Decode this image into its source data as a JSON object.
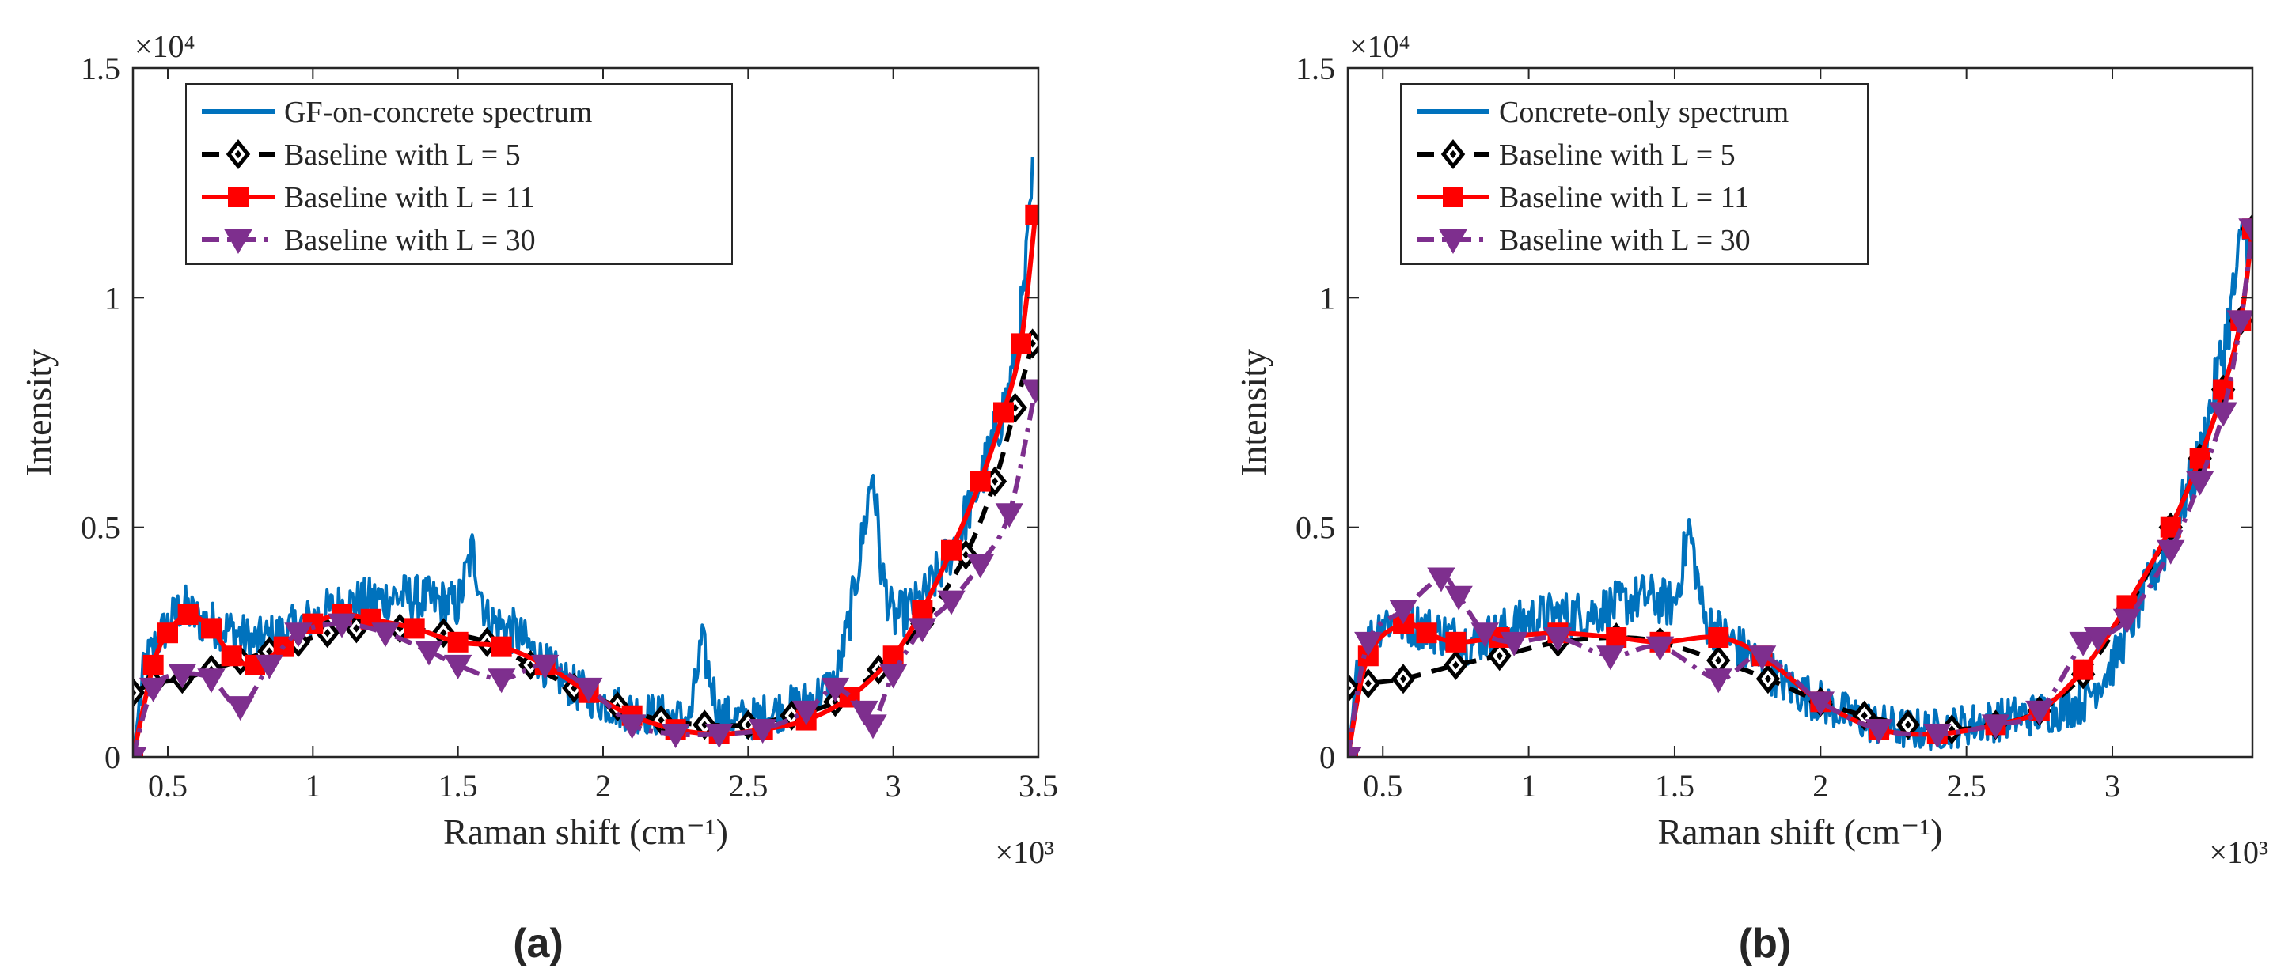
{
  "figure": {
    "panels": [
      "a",
      "b"
    ]
  },
  "chart_data": [
    {
      "type": "line",
      "panel_caption": "(a)",
      "title": "",
      "xlabel": "Raman shift (cm⁻¹)",
      "ylabel": "Intensity",
      "x_exponent": "×10³",
      "y_exponent": "×10⁴",
      "xlim": [
        0.38,
        3.5
      ],
      "ylim": [
        0,
        1.5
      ],
      "xticks": [
        0.5,
        1,
        1.5,
        2,
        2.5,
        3,
        3.5
      ],
      "xtick_labels": [
        "0.5",
        "1",
        "1.5",
        "2",
        "2.5",
        "3",
        "3.5"
      ],
      "yticks": [
        0,
        0.5,
        1,
        1.5
      ],
      "ytick_labels": [
        "0",
        "0.5",
        "1",
        "1.5"
      ],
      "legend_position": "top-left",
      "series": [
        {
          "name": "GF-on-concrete spectrum",
          "color": "#0072BD",
          "style": "solid",
          "marker": "none",
          "noisy": true,
          "x": [
            0.38,
            0.42,
            0.48,
            0.55,
            0.6,
            0.7,
            0.8,
            0.9,
            1.0,
            1.1,
            1.2,
            1.3,
            1.4,
            1.5,
            1.55,
            1.6,
            1.7,
            1.8,
            1.9,
            2.0,
            2.1,
            2.2,
            2.3,
            2.34,
            2.4,
            2.5,
            2.6,
            2.7,
            2.8,
            2.85,
            2.9,
            2.93,
            2.96,
            3.0,
            3.1,
            3.2,
            3.3,
            3.4,
            3.45,
            3.48
          ],
          "y": [
            0.0,
            0.2,
            0.27,
            0.33,
            0.3,
            0.28,
            0.25,
            0.27,
            0.3,
            0.33,
            0.34,
            0.35,
            0.34,
            0.33,
            0.45,
            0.3,
            0.27,
            0.2,
            0.15,
            0.12,
            0.1,
            0.09,
            0.08,
            0.25,
            0.09,
            0.08,
            0.1,
            0.12,
            0.16,
            0.3,
            0.5,
            0.63,
            0.4,
            0.3,
            0.34,
            0.45,
            0.6,
            0.8,
            1.0,
            1.25
          ]
        },
        {
          "name": "Baseline with L = 5",
          "color": "#000000",
          "style": "dashed",
          "marker": "diamond",
          "x": [
            0.38,
            0.45,
            0.55,
            0.65,
            0.75,
            0.85,
            0.95,
            1.05,
            1.15,
            1.3,
            1.45,
            1.6,
            1.75,
            1.9,
            2.05,
            2.2,
            2.35,
            2.5,
            2.65,
            2.8,
            2.95,
            3.1,
            3.25,
            3.35,
            3.42,
            3.48
          ],
          "y": [
            0.14,
            0.16,
            0.17,
            0.19,
            0.21,
            0.23,
            0.25,
            0.27,
            0.28,
            0.28,
            0.27,
            0.25,
            0.2,
            0.15,
            0.11,
            0.08,
            0.07,
            0.07,
            0.09,
            0.12,
            0.19,
            0.29,
            0.44,
            0.6,
            0.76,
            0.9
          ]
        },
        {
          "name": "Baseline with L = 11",
          "color": "#FF0000",
          "style": "solid",
          "marker": "square",
          "x": [
            0.38,
            0.45,
            0.5,
            0.57,
            0.65,
            0.72,
            0.8,
            0.9,
            1.0,
            1.1,
            1.2,
            1.35,
            1.5,
            1.65,
            1.8,
            1.95,
            2.1,
            2.25,
            2.4,
            2.55,
            2.7,
            2.85,
            3.0,
            3.1,
            3.2,
            3.3,
            3.38,
            3.44,
            3.49
          ],
          "y": [
            0.0,
            0.2,
            0.27,
            0.31,
            0.28,
            0.22,
            0.2,
            0.24,
            0.29,
            0.31,
            0.3,
            0.28,
            0.25,
            0.24,
            0.2,
            0.14,
            0.09,
            0.06,
            0.05,
            0.06,
            0.08,
            0.13,
            0.22,
            0.32,
            0.45,
            0.6,
            0.75,
            0.9,
            1.18
          ]
        },
        {
          "name": "Baseline with L = 30",
          "color": "#7E2F8E",
          "style": "dashdot",
          "marker": "triangle-down",
          "x": [
            0.38,
            0.45,
            0.55,
            0.65,
            0.75,
            0.85,
            0.95,
            1.1,
            1.25,
            1.4,
            1.5,
            1.65,
            1.8,
            1.95,
            2.1,
            2.25,
            2.4,
            2.55,
            2.7,
            2.8,
            2.9,
            2.93,
            3.0,
            3.1,
            3.2,
            3.3,
            3.4,
            3.49
          ],
          "y": [
            0.0,
            0.15,
            0.18,
            0.17,
            0.11,
            0.2,
            0.27,
            0.29,
            0.27,
            0.23,
            0.2,
            0.17,
            0.2,
            0.15,
            0.07,
            0.05,
            0.05,
            0.06,
            0.1,
            0.15,
            0.1,
            0.07,
            0.18,
            0.28,
            0.34,
            0.42,
            0.53,
            0.8
          ]
        }
      ]
    },
    {
      "type": "line",
      "panel_caption": "(b)",
      "title": "",
      "xlabel": "Raman shift (cm⁻¹)",
      "ylabel": "Intensity",
      "x_exponent": "×10³",
      "y_exponent": "×10⁴",
      "xlim": [
        0.38,
        3.48
      ],
      "ylim": [
        0,
        1.5
      ],
      "xticks": [
        0.5,
        1,
        1.5,
        2,
        2.5,
        3
      ],
      "xtick_labels": [
        "0.5",
        "1",
        "1.5",
        "2",
        "2.5",
        "3"
      ],
      "yticks": [
        0,
        0.5,
        1,
        1.5
      ],
      "ytick_labels": [
        "0",
        "0.5",
        "1",
        "1.5"
      ],
      "legend_position": "top-left",
      "series": [
        {
          "name": "Concrete-only spectrum",
          "color": "#0072BD",
          "style": "solid",
          "marker": "none",
          "noisy": true,
          "x": [
            0.38,
            0.42,
            0.5,
            0.6,
            0.7,
            0.8,
            0.9,
            1.0,
            1.1,
            1.2,
            1.3,
            1.4,
            1.5,
            1.55,
            1.6,
            1.7,
            1.8,
            1.9,
            2.0,
            2.1,
            2.2,
            2.3,
            2.4,
            2.5,
            2.6,
            2.7,
            2.8,
            2.9,
            3.0,
            3.1,
            3.2,
            3.3,
            3.35,
            3.4,
            3.45,
            3.48
          ],
          "y": [
            0.0,
            0.22,
            0.3,
            0.29,
            0.27,
            0.25,
            0.27,
            0.3,
            0.31,
            0.31,
            0.33,
            0.35,
            0.33,
            0.5,
            0.3,
            0.25,
            0.2,
            0.15,
            0.12,
            0.09,
            0.07,
            0.06,
            0.06,
            0.07,
            0.08,
            0.09,
            0.1,
            0.12,
            0.2,
            0.34,
            0.48,
            0.65,
            0.8,
            0.95,
            1.15,
            1.1
          ]
        },
        {
          "name": "Baseline with L = 5",
          "color": "#000000",
          "style": "dashed",
          "marker": "diamond",
          "x": [
            0.38,
            0.45,
            0.57,
            0.75,
            0.9,
            1.1,
            1.3,
            1.45,
            1.65,
            1.82,
            2.0,
            2.15,
            2.3,
            2.45,
            2.6,
            2.75,
            2.9,
            3.05,
            3.2,
            3.3,
            3.38,
            3.44,
            3.48
          ],
          "y": [
            0.15,
            0.16,
            0.17,
            0.2,
            0.22,
            0.25,
            0.26,
            0.25,
            0.21,
            0.17,
            0.12,
            0.09,
            0.07,
            0.06,
            0.07,
            0.1,
            0.18,
            0.32,
            0.5,
            0.65,
            0.8,
            0.95,
            1.15
          ]
        },
        {
          "name": "Baseline with L = 11",
          "color": "#FF0000",
          "style": "solid",
          "marker": "square",
          "x": [
            0.38,
            0.45,
            0.57,
            0.65,
            0.75,
            0.9,
            1.1,
            1.3,
            1.45,
            1.65,
            1.8,
            2.0,
            2.2,
            2.4,
            2.6,
            2.75,
            2.9,
            3.05,
            3.2,
            3.3,
            3.38,
            3.44,
            3.48
          ],
          "y": [
            0.0,
            0.22,
            0.29,
            0.27,
            0.25,
            0.26,
            0.27,
            0.26,
            0.25,
            0.26,
            0.22,
            0.12,
            0.06,
            0.05,
            0.07,
            0.1,
            0.19,
            0.33,
            0.5,
            0.65,
            0.8,
            0.95,
            1.15
          ]
        },
        {
          "name": "Baseline with L = 30",
          "color": "#7E2F8E",
          "style": "dashdot",
          "marker": "triangle-down",
          "x": [
            0.38,
            0.45,
            0.57,
            0.7,
            0.76,
            0.85,
            0.95,
            1.1,
            1.28,
            1.45,
            1.65,
            1.8,
            2.0,
            2.2,
            2.4,
            2.6,
            2.75,
            2.9,
            2.95,
            3.05,
            3.2,
            3.3,
            3.38,
            3.44,
            3.48
          ],
          "y": [
            0.0,
            0.25,
            0.32,
            0.39,
            0.35,
            0.27,
            0.25,
            0.26,
            0.22,
            0.24,
            0.17,
            0.22,
            0.12,
            0.06,
            0.05,
            0.07,
            0.1,
            0.25,
            0.26,
            0.3,
            0.45,
            0.6,
            0.75,
            0.95,
            1.15
          ]
        }
      ]
    }
  ]
}
